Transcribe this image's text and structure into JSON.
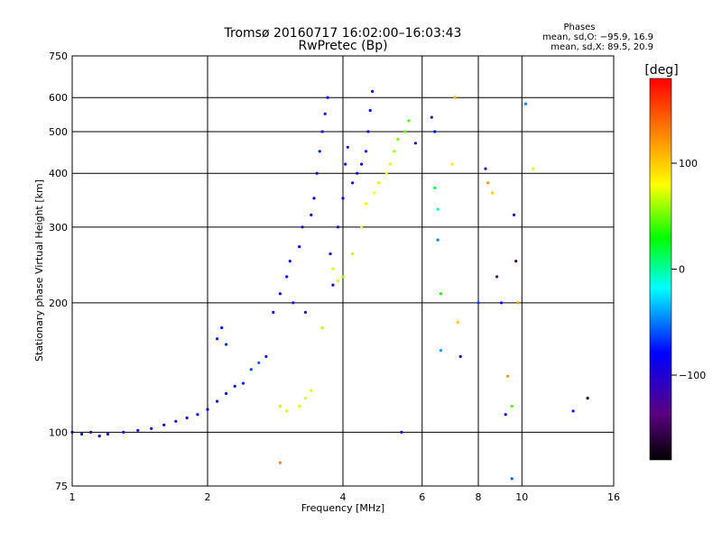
{
  "chart_data": {
    "type": "scatter",
    "title": "Tromsø 20160717 16:02:00–16:03:43",
    "subtitle": "RwPretec (Bp)",
    "xlabel": "Frequency [MHz]",
    "ylabel": "Stationary phase Virtual Height [km]",
    "x_scale": "log",
    "y_scale": "log",
    "xlim": [
      1,
      16
    ],
    "ylim": [
      75,
      750
    ],
    "x_ticks": [
      "1",
      "2",
      "4",
      "6",
      "8",
      "10",
      "16"
    ],
    "x_tick_values": [
      1,
      2,
      4,
      6,
      8,
      10,
      16
    ],
    "y_ticks": [
      "75",
      "100",
      "200",
      "300",
      "400",
      "500",
      "600",
      "750"
    ],
    "y_tick_values": [
      75,
      100,
      200,
      300,
      400,
      500,
      600,
      750
    ],
    "grid": true,
    "legend": {
      "title": "Phases",
      "line1": "mean, sd,O: −95.9, 16.9",
      "line2": "mean, sd,X:  89.5, 20.9",
      "placement": "top-right"
    },
    "colorbar": {
      "label": "[deg]",
      "ticks": [
        "100",
        "0",
        "−100"
      ],
      "tick_values": [
        100,
        0,
        -100
      ],
      "range": [
        -180,
        180
      ],
      "colors": [
        "#000000",
        "#5a0080",
        "#0000ff",
        "#00ffff",
        "#00ff00",
        "#ffff00",
        "#ff8000",
        "#ff0000"
      ]
    },
    "series": [
      {
        "points": [
          [
            1.0,
            100,
            -110
          ],
          [
            1.05,
            99,
            -105
          ],
          [
            1.1,
            100,
            -110
          ],
          [
            1.15,
            98,
            -100
          ],
          [
            1.2,
            99,
            -115
          ],
          [
            1.3,
            100,
            -105
          ],
          [
            1.4,
            101,
            -110
          ],
          [
            1.5,
            102,
            -100
          ],
          [
            1.6,
            104,
            -110
          ],
          [
            1.7,
            106,
            -105
          ],
          [
            1.8,
            108,
            -112
          ],
          [
            1.9,
            110,
            -100
          ],
          [
            2.0,
            113,
            -108
          ],
          [
            2.1,
            118,
            -95
          ],
          [
            2.2,
            123,
            -105
          ],
          [
            2.3,
            128,
            -100
          ],
          [
            2.4,
            130,
            -90
          ],
          [
            2.5,
            140,
            -80
          ],
          [
            2.6,
            145,
            -70
          ],
          [
            2.7,
            150,
            -95
          ],
          [
            2.1,
            165,
            -90
          ],
          [
            2.15,
            175,
            -100
          ],
          [
            2.2,
            160,
            -85
          ],
          [
            2.8,
            190,
            -110
          ],
          [
            2.9,
            210,
            -105
          ],
          [
            3.0,
            230,
            -100
          ],
          [
            3.05,
            250,
            -95
          ],
          [
            3.1,
            200,
            -115
          ],
          [
            3.2,
            270,
            -100
          ],
          [
            3.25,
            300,
            -110
          ],
          [
            3.3,
            190,
            -120
          ],
          [
            3.4,
            320,
            -105
          ],
          [
            3.45,
            350,
            -100
          ],
          [
            3.5,
            400,
            -110
          ],
          [
            3.55,
            450,
            -100
          ],
          [
            3.6,
            500,
            -115
          ],
          [
            3.65,
            550,
            -100
          ],
          [
            3.7,
            600,
            -105
          ],
          [
            3.75,
            260,
            -105
          ],
          [
            3.8,
            220,
            -110
          ],
          [
            3.9,
            300,
            -100
          ],
          [
            4.0,
            350,
            -105
          ],
          [
            4.05,
            420,
            -100
          ],
          [
            4.1,
            460,
            -110
          ],
          [
            4.2,
            380,
            -100
          ],
          [
            4.3,
            400,
            -105
          ],
          [
            4.4,
            420,
            -110
          ],
          [
            4.5,
            450,
            -100
          ],
          [
            4.55,
            500,
            -105
          ],
          [
            4.6,
            560,
            -100
          ],
          [
            4.65,
            620,
            -110
          ],
          [
            2.9,
            115,
            80
          ],
          [
            3.0,
            112,
            90
          ],
          [
            3.2,
            115,
            95
          ],
          [
            3.3,
            120,
            90
          ],
          [
            3.4,
            125,
            85
          ],
          [
            3.6,
            175,
            80
          ],
          [
            3.8,
            240,
            85
          ],
          [
            3.9,
            225,
            90
          ],
          [
            4.0,
            230,
            70
          ],
          [
            4.2,
            260,
            80
          ],
          [
            4.4,
            300,
            90
          ],
          [
            4.5,
            340,
            95
          ],
          [
            4.7,
            360,
            100
          ],
          [
            4.8,
            380,
            110
          ],
          [
            5.0,
            400,
            100
          ],
          [
            5.1,
            420,
            95
          ],
          [
            5.2,
            450,
            70
          ],
          [
            5.3,
            480,
            60
          ],
          [
            5.5,
            500,
            50
          ],
          [
            5.6,
            530,
            45
          ],
          [
            5.8,
            470,
            -110
          ],
          [
            6.3,
            540,
            -130
          ],
          [
            6.4,
            500,
            -100
          ],
          [
            6.4,
            370,
            10
          ],
          [
            6.5,
            330,
            -10
          ],
          [
            6.5,
            280,
            -60
          ],
          [
            6.6,
            210,
            20
          ],
          [
            6.6,
            155,
            -50
          ],
          [
            7.0,
            420,
            110
          ],
          [
            7.1,
            600,
            130
          ],
          [
            7.2,
            180,
            120
          ],
          [
            7.3,
            150,
            -110
          ],
          [
            8.0,
            200,
            -80
          ],
          [
            8.3,
            410,
            -130
          ],
          [
            8.4,
            380,
            140
          ],
          [
            8.6,
            360,
            120
          ],
          [
            8.8,
            230,
            -140
          ],
          [
            9.0,
            200,
            -110
          ],
          [
            9.2,
            110,
            -110
          ],
          [
            9.3,
            135,
            140
          ],
          [
            9.5,
            115,
            40
          ],
          [
            9.6,
            320,
            -120
          ],
          [
            9.7,
            250,
            -150
          ],
          [
            9.8,
            200,
            140
          ],
          [
            10.2,
            580,
            -60
          ],
          [
            10.6,
            410,
            90
          ],
          [
            13.0,
            112,
            -110
          ],
          [
            14.0,
            120,
            -180
          ],
          [
            5.4,
            100,
            -110
          ],
          [
            2.9,
            85,
            150
          ],
          [
            9.5,
            78,
            -70
          ]
        ]
      }
    ]
  }
}
